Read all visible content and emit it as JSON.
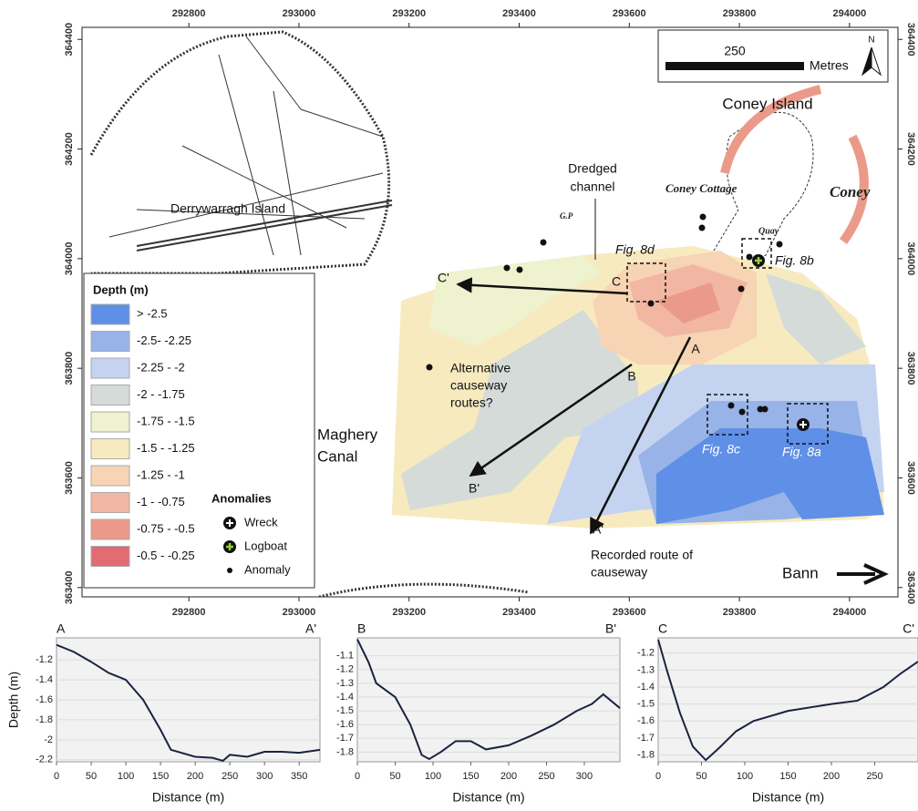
{
  "map": {
    "xlim": [
      292606,
      294088
    ],
    "ylim": [
      363383,
      364422
    ],
    "xticks": [
      292800,
      293000,
      293200,
      293400,
      293600,
      293800,
      294000
    ],
    "yticks": [
      363400,
      363600,
      363800,
      364000,
      364200,
      364400
    ],
    "labels": {
      "coney_island": "Coney Island",
      "dredged_1": "Dredged",
      "dredged_2": "channel",
      "derrywarragh": "Derrywarragh Island",
      "maghery_1": "Maghery",
      "maghery_2": "Canal",
      "bann": "Bann",
      "alt_1": "Alternative",
      "alt_2": "causeway",
      "alt_3": "routes?",
      "rec_1": "Recorded route of",
      "rec_2": "causeway",
      "fig8a": "Fig. 8a",
      "fig8b": "Fig. 8b",
      "fig8c": "Fig. 8c",
      "fig8d": "Fig. 8d",
      "a": "A",
      "a2": "A'",
      "b": "B",
      "b2": "B'",
      "c": "C",
      "c2": "C'",
      "coney_cottage": "Coney Cottage",
      "coney_old": "Coney",
      "quay": "Quay",
      "gp": "G.P"
    },
    "scale_bar": {
      "length": 250,
      "unit": "Metres",
      "north": "N"
    },
    "legend": {
      "title": "Depth (m)",
      "classes": [
        {
          "label": "> -2.5",
          "color": "#5f8fe6"
        },
        {
          "label": "-2.5- -2.25",
          "color": "#98b3e8"
        },
        {
          "label": "-2.25 - -2",
          "color": "#c4d4f0"
        },
        {
          "label": "-2 - -1.75",
          "color": "#d5dbd8"
        },
        {
          "label": "-1.75 - -1.5",
          "color": "#eef2cf"
        },
        {
          "label": "-1.5 - -1.25",
          "color": "#f7eabf"
        },
        {
          "label": "-1.25 - -1",
          "color": "#f7d4b4"
        },
        {
          "label": "-1 - -0.75",
          "color": "#f1b7a3"
        },
        {
          "label": "-0.75 - -0.5",
          "color": "#eb9a89"
        },
        {
          "label": "-0.5 - -0.25",
          "color": "#e36b72"
        }
      ],
      "anomalies_title": "Anomalies",
      "anomaly_types": [
        "Wreck",
        "Logboat",
        "Anomaly"
      ]
    }
  },
  "chart_data": [
    {
      "type": "line",
      "start_label": "A",
      "end_label": "A'",
      "x_label": "Distance (m)",
      "y_label": "Depth (m)",
      "color": "#1a2340",
      "x": [
        0,
        25,
        50,
        75,
        100,
        125,
        150,
        165,
        200,
        225,
        240,
        250,
        275,
        300,
        325,
        350,
        380
      ],
      "values": [
        -1.05,
        -1.12,
        -1.22,
        -1.33,
        -1.4,
        -1.6,
        -1.9,
        -2.1,
        -2.17,
        -2.18,
        -2.21,
        -2.15,
        -2.17,
        -2.12,
        -2.12,
        -2.13,
        -2.1
      ],
      "xlim": [
        0,
        380
      ],
      "ylim": [
        -2.22,
        -0.98
      ],
      "xticks": [
        0,
        50,
        100,
        150,
        200,
        250,
        300,
        350
      ],
      "yticks": [
        -1.2,
        -1.4,
        -1.6,
        -1.8,
        -2,
        -2.2
      ],
      "grid": true
    },
    {
      "type": "line",
      "start_label": "B",
      "end_label": "B'",
      "x_label": "Distance (m)",
      "color": "#1a2340",
      "x": [
        0,
        15,
        25,
        50,
        70,
        85,
        95,
        110,
        130,
        150,
        170,
        200,
        230,
        260,
        290,
        310,
        325,
        347
      ],
      "values": [
        -0.98,
        -1.15,
        -1.3,
        -1.4,
        -1.6,
        -1.82,
        -1.85,
        -1.8,
        -1.72,
        -1.72,
        -1.78,
        -1.75,
        -1.68,
        -1.6,
        -1.5,
        -1.45,
        -1.38,
        -1.48
      ],
      "xlim": [
        0,
        347
      ],
      "ylim": [
        -1.87,
        -0.97
      ],
      "xticks": [
        0,
        50,
        100,
        150,
        200,
        250,
        300
      ],
      "yticks": [
        -1.1,
        -1.2,
        -1.3,
        -1.4,
        -1.5,
        -1.6,
        -1.7,
        -1.8
      ],
      "grid": true
    },
    {
      "type": "line",
      "start_label": "C",
      "end_label": "C'",
      "x_label": "Distance (m)",
      "color": "#1a2340",
      "x": [
        0,
        10,
        25,
        40,
        55,
        70,
        90,
        110,
        150,
        200,
        230,
        260,
        280,
        300
      ],
      "values": [
        -1.12,
        -1.3,
        -1.55,
        -1.75,
        -1.83,
        -1.76,
        -1.66,
        -1.6,
        -1.54,
        -1.5,
        -1.48,
        -1.4,
        -1.32,
        -1.25
      ],
      "xlim": [
        0,
        300
      ],
      "ylim": [
        -1.84,
        -1.11
      ],
      "xticks": [
        0,
        50,
        100,
        150,
        200,
        250
      ],
      "yticks": [
        -1.2,
        -1.3,
        -1.4,
        -1.5,
        -1.6,
        -1.7,
        -1.8
      ],
      "grid": true
    }
  ]
}
